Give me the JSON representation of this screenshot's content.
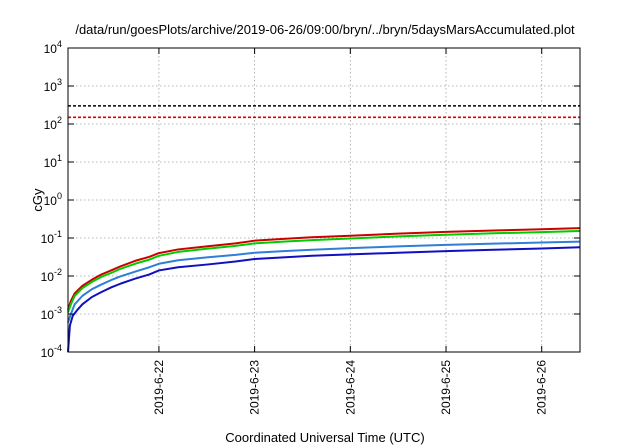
{
  "chart_data": {
    "type": "line",
    "title": "/data/run/goesPlots/archive/2019-06-26/09:00/bryn/../bryn/5daysMarsAccumulated.plot",
    "xlabel": "Coordinated Universal Time (UTC)",
    "ylabel": "cGy",
    "yscale": "log",
    "xlim": [
      21.05,
      26.4
    ],
    "ylim": [
      0.0001,
      10000
    ],
    "grid": true,
    "x_tick_values": [
      22,
      23,
      24,
      25,
      26
    ],
    "x_tick_labels": [
      "2019-6-22",
      "2019-6-23",
      "2019-6-24",
      "2019-6-25",
      "2019-6-26"
    ],
    "y_ticks": [
      {
        "value": 0.0001,
        "base": "10",
        "exp": "-4"
      },
      {
        "value": 0.001,
        "base": "10",
        "exp": "-3"
      },
      {
        "value": 0.01,
        "base": "10",
        "exp": "-2"
      },
      {
        "value": 0.1,
        "base": "10",
        "exp": "-1"
      },
      {
        "value": 1,
        "base": "10",
        "exp": "0"
      },
      {
        "value": 10,
        "base": "10",
        "exp": "1"
      },
      {
        "value": 100,
        "base": "10",
        "exp": "2"
      },
      {
        "value": 1000,
        "base": "10",
        "exp": "3"
      },
      {
        "value": 10000,
        "base": "10",
        "exp": "4"
      }
    ],
    "reference_lines": [
      {
        "y": 300,
        "color": "#000000",
        "dash": true
      },
      {
        "y": 150,
        "color": "#e00000",
        "dash": true
      }
    ],
    "series": [
      {
        "color": "#cc0000",
        "x": [
          21.05,
          21.08,
          21.12,
          21.2,
          21.3,
          21.4,
          21.5,
          21.6,
          21.75,
          21.9,
          22.0,
          22.2,
          22.5,
          22.8,
          23.0,
          23.3,
          23.6,
          24.0,
          24.5,
          25.0,
          25.5,
          26.0,
          26.4
        ],
        "y": [
          0.0013,
          0.0022,
          0.0035,
          0.0055,
          0.008,
          0.011,
          0.014,
          0.018,
          0.025,
          0.032,
          0.04,
          0.05,
          0.06,
          0.072,
          0.085,
          0.095,
          0.105,
          0.115,
          0.13,
          0.145,
          0.158,
          0.17,
          0.182
        ]
      },
      {
        "color": "#00cc00",
        "x": [
          21.05,
          21.08,
          21.12,
          21.2,
          21.3,
          21.4,
          21.5,
          21.6,
          21.75,
          21.9,
          22.0,
          22.2,
          22.5,
          22.8,
          23.0,
          23.3,
          23.6,
          24.0,
          24.5,
          25.0,
          25.5,
          26.0,
          26.4
        ],
        "y": [
          0.0011,
          0.0018,
          0.003,
          0.0048,
          0.007,
          0.0095,
          0.012,
          0.0155,
          0.021,
          0.027,
          0.034,
          0.043,
          0.052,
          0.062,
          0.072,
          0.08,
          0.088,
          0.097,
          0.11,
          0.122,
          0.133,
          0.143,
          0.153
        ]
      },
      {
        "color": "#2f7fd8",
        "x": [
          21.05,
          21.08,
          21.12,
          21.2,
          21.3,
          21.4,
          21.5,
          21.6,
          21.75,
          21.9,
          22.0,
          22.2,
          22.5,
          22.8,
          23.0,
          23.3,
          23.6,
          24.0,
          24.5,
          25.0,
          25.5,
          26.0,
          26.4
        ],
        "y": [
          0.0006,
          0.001,
          0.0018,
          0.003,
          0.0045,
          0.006,
          0.0078,
          0.0098,
          0.013,
          0.017,
          0.021,
          0.026,
          0.031,
          0.036,
          0.041,
          0.045,
          0.049,
          0.054,
          0.06,
          0.066,
          0.071,
          0.076,
          0.08
        ]
      },
      {
        "color": "#1010c0",
        "x": [
          21.05,
          21.07,
          21.1,
          21.15,
          21.2,
          21.3,
          21.4,
          21.5,
          21.6,
          21.75,
          21.9,
          22.0,
          22.2,
          22.5,
          22.8,
          23.0,
          23.3,
          23.6,
          24.0,
          24.5,
          25.0,
          25.5,
          26.0,
          26.4
        ],
        "y": [
          0.0001,
          0.0005,
          0.0009,
          0.0013,
          0.0018,
          0.0028,
          0.0038,
          0.005,
          0.0063,
          0.0085,
          0.011,
          0.014,
          0.017,
          0.02,
          0.024,
          0.028,
          0.031,
          0.034,
          0.037,
          0.041,
          0.045,
          0.049,
          0.053,
          0.057
        ]
      }
    ]
  }
}
